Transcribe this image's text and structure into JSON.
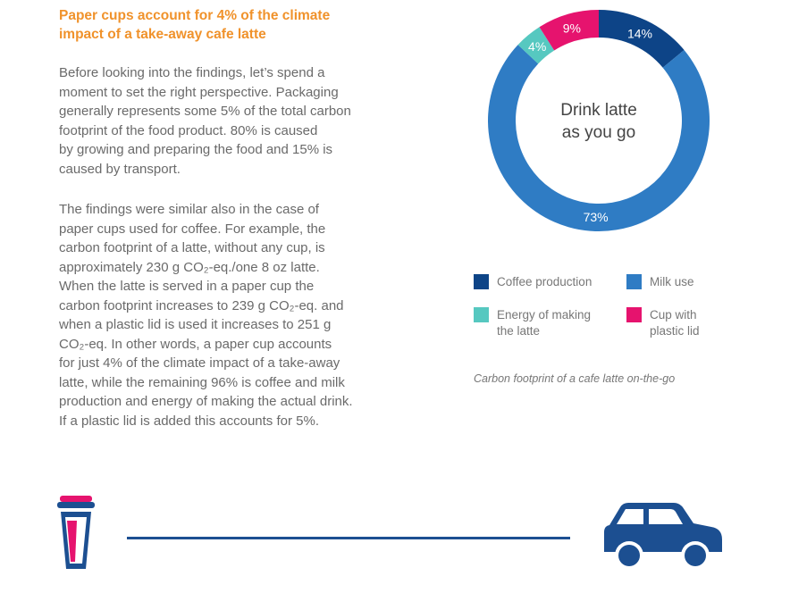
{
  "heading": {
    "lines": [
      "Paper cups account for 4% of the climate",
      "impact of a take-away cafe latte"
    ]
  },
  "paragraphs": [
    {
      "lines": [
        "Before looking into the findings, let’s spend a",
        "moment to set the right perspective. Packaging",
        "generally represents some 5% of the total carbon",
        "footprint of the food product. 80% is caused",
        "by growing and preparing the food and 15% is",
        "caused by transport."
      ]
    },
    {
      "lines": [
        "The findings were similar also in the case of",
        "paper cups used for coffee. For example, the",
        "carbon footprint of a latte, without any cup, is",
        "approximately 230 g CO₂-eq./one 8 oz latte.",
        "When the latte is served in a paper cup the",
        "carbon footprint increases to 239 g CO₂-eq. and",
        "when a plastic lid is used it increases to 251 g",
        "CO₂-eq. In other words, a paper cup accounts",
        "for just 4% of the climate impact of a take-away",
        "latte, while the remaining 96% is coffee and milk",
        "production and energy of making the actual drink.",
        "If a plastic lid is added this accounts for 5%."
      ]
    }
  ],
  "chart_data": {
    "type": "pie",
    "donut": true,
    "center_label_lines": [
      "Drink latte",
      "as you go"
    ],
    "start_angle_deg": 0,
    "slices": [
      {
        "name": "Coffee production",
        "value": 14,
        "label": "14%",
        "color": "#0d4487"
      },
      {
        "name": "Milk use",
        "value": 73,
        "label": "73%",
        "color": "#2f7cc4"
      },
      {
        "name": "Energy of making the latte",
        "value": 4,
        "label": "4%",
        "color": "#56c8c0"
      },
      {
        "name": "Cup with plastic lid",
        "value": 9,
        "label": "9%",
        "color": "#e6136e"
      }
    ],
    "legend": [
      {
        "label_lines": [
          "Coffee production"
        ],
        "color": "#0d4487"
      },
      {
        "label_lines": [
          "Milk use"
        ],
        "color": "#2f7cc4"
      },
      {
        "label_lines": [
          "Energy of making",
          "the latte"
        ],
        "color": "#56c8c0"
      },
      {
        "label_lines": [
          "Cup with",
          "plastic lid"
        ],
        "color": "#e6136e"
      }
    ],
    "caption": "Carbon footprint of a cafe latte on-the-go"
  },
  "illustration": {
    "icons": [
      "coffee-cup-icon",
      "road-line",
      "car-icon"
    ],
    "colors": {
      "navy": "#1c4f91",
      "pink": "#e6136e"
    }
  }
}
